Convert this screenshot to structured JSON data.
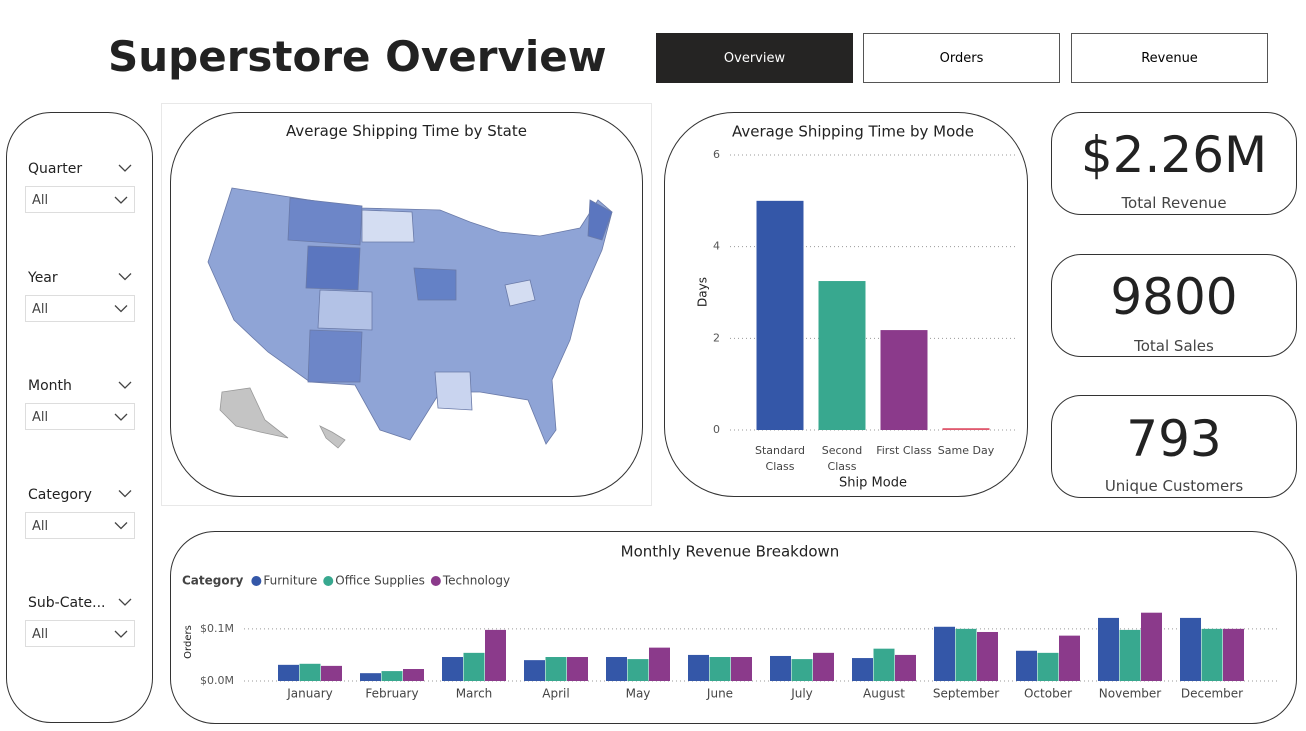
{
  "header": {
    "title": "Superstore Overview"
  },
  "tabs": [
    "Overview",
    "Orders",
    "Revenue"
  ],
  "filters": [
    {
      "label": "Quarter",
      "value": "All"
    },
    {
      "label": "Year",
      "value": "All"
    },
    {
      "label": "Month",
      "value": "All"
    },
    {
      "label": "Category",
      "value": "All"
    },
    {
      "label": "Sub-Cate...",
      "value": "All"
    }
  ],
  "map": {
    "title": "Average Shipping Time by State"
  },
  "kpis": [
    {
      "value": "$2.26M",
      "label": "Total Revenue"
    },
    {
      "value": "9800",
      "label": "Total Sales"
    },
    {
      "value": "793",
      "label": "Unique Customers"
    }
  ],
  "chart_data": [
    {
      "type": "bar",
      "title": "Average Shipping Time by Mode",
      "x_label": "Ship Mode",
      "y_label": "Days",
      "categories": [
        "Standard Class",
        "Second Class",
        "First Class",
        "Same Day"
      ],
      "values": [
        5.0,
        3.25,
        2.18,
        0.04
      ],
      "colors": [
        "#3457a8",
        "#38a88f",
        "#8b3a8b",
        "#e05a6f"
      ],
      "ylim": [
        0,
        6
      ],
      "yticks": [
        0,
        2,
        4,
        6
      ],
      "grid": true
    },
    {
      "type": "grouped_bar",
      "title": "Monthly Revenue Breakdown",
      "legend_title": "Category",
      "y_label": "Orders",
      "categories": [
        "January",
        "February",
        "March",
        "April",
        "May",
        "June",
        "July",
        "August",
        "September",
        "October",
        "November",
        "December"
      ],
      "series": [
        {
          "name": "Furniture",
          "color": "#3457a8",
          "values": [
            31000,
            15000,
            46000,
            40000,
            46000,
            50000,
            48000,
            44000,
            104000,
            58000,
            121000,
            121000
          ]
        },
        {
          "name": "Office Supplies",
          "color": "#38a88f",
          "values": [
            33000,
            19000,
            54000,
            46000,
            42000,
            46000,
            42000,
            62000,
            100000,
            54000,
            98000,
            100000
          ]
        },
        {
          "name": "Technology",
          "color": "#8b3a8b",
          "values": [
            29000,
            23000,
            98000,
            46000,
            64000,
            46000,
            54000,
            50000,
            94000,
            87000,
            131000,
            100000
          ]
        }
      ],
      "ylim": [
        0,
        140000
      ],
      "yticks": [
        {
          "value": 0,
          "label": "$0.0M"
        },
        {
          "value": 100000,
          "label": "$0.1M"
        }
      ],
      "grid": true
    }
  ]
}
